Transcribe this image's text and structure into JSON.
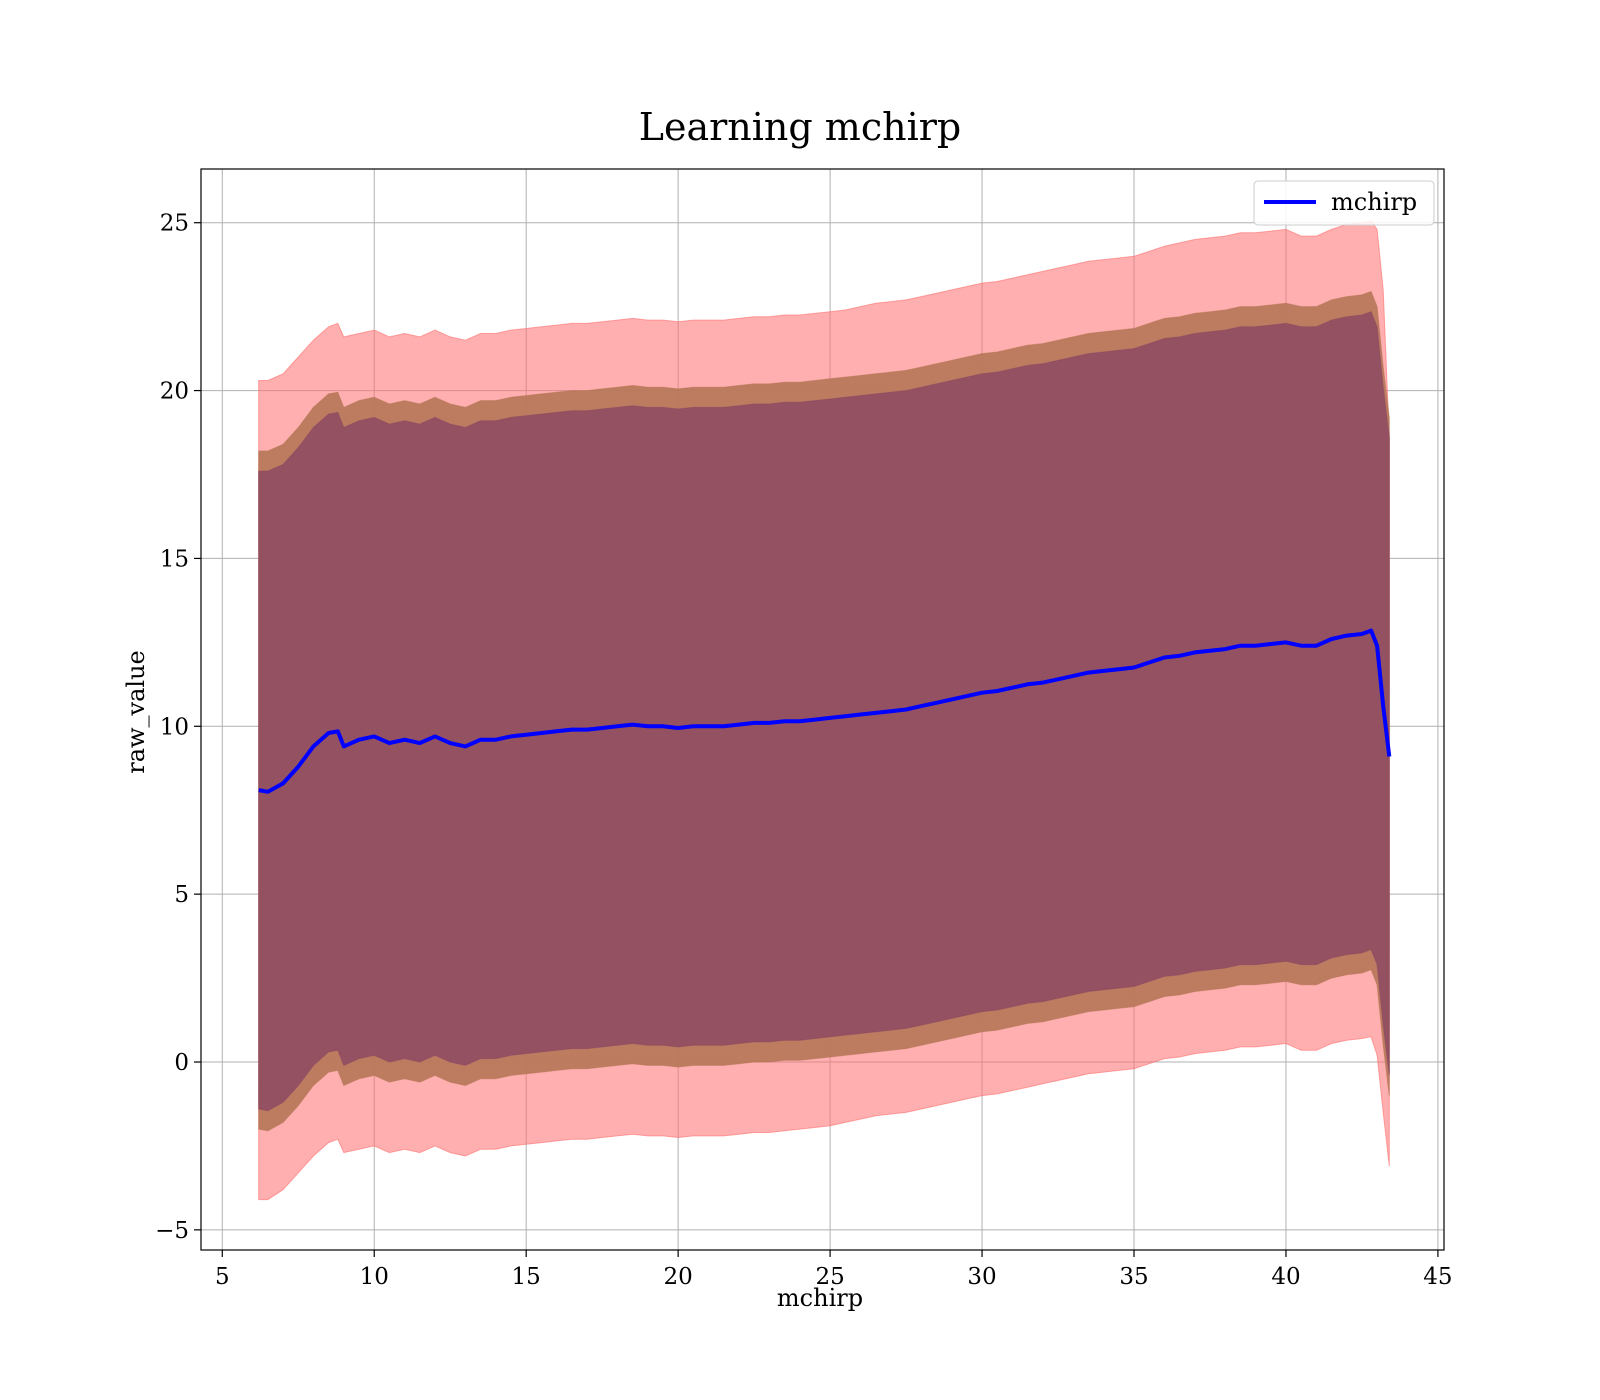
{
  "chart_data": {
    "type": "area",
    "title": "Learning mchirp",
    "xlabel": "mchirp",
    "ylabel": "raw_value",
    "xlim": [
      4.3,
      45.2
    ],
    "ylim": [
      -5.6,
      26.6
    ],
    "xticks": [
      5,
      10,
      15,
      20,
      25,
      30,
      35,
      40,
      45
    ],
    "yticks": [
      -5,
      0,
      5,
      10,
      15,
      20,
      25
    ],
    "ytick_labels": [
      "−5",
      "0",
      "5",
      "10",
      "15",
      "20",
      "25"
    ],
    "grid": true,
    "legend": {
      "placement": "top-right",
      "entries": [
        "mchirp"
      ]
    },
    "colors": {
      "line": "#0000ff",
      "band_outer": "#ff6e6e",
      "band_middle": "#b67758",
      "band_inner": "#8c4a62"
    },
    "series": [
      {
        "name": "mchirp",
        "x": [
          6.2,
          6.5,
          7.0,
          7.5,
          8.0,
          8.5,
          8.8,
          9.0,
          9.5,
          10.0,
          10.5,
          11.0,
          11.5,
          12.0,
          12.5,
          13.0,
          13.5,
          14.0,
          14.5,
          15.0,
          15.5,
          16.0,
          16.5,
          17.0,
          17.5,
          18.0,
          18.5,
          19.0,
          19.5,
          20.0,
          20.5,
          21.0,
          21.5,
          22.0,
          22.5,
          23.0,
          23.5,
          24.0,
          24.5,
          25.0,
          25.5,
          26.0,
          26.5,
          27.0,
          27.5,
          28.0,
          28.5,
          29.0,
          29.5,
          30.0,
          30.5,
          31.0,
          31.5,
          32.0,
          32.5,
          33.0,
          33.5,
          34.0,
          34.5,
          35.0,
          35.5,
          36.0,
          36.5,
          37.0,
          37.5,
          38.0,
          38.5,
          39.0,
          39.5,
          40.0,
          40.5,
          41.0,
          41.5,
          42.0,
          42.5,
          42.8,
          43.0,
          43.2,
          43.4
        ],
        "y": [
          8.1,
          8.05,
          8.3,
          8.8,
          9.4,
          9.8,
          9.85,
          9.4,
          9.6,
          9.7,
          9.5,
          9.6,
          9.5,
          9.7,
          9.5,
          9.4,
          9.6,
          9.6,
          9.7,
          9.75,
          9.8,
          9.85,
          9.9,
          9.9,
          9.95,
          10.0,
          10.05,
          10.0,
          10.0,
          9.95,
          10.0,
          10.0,
          10.0,
          10.05,
          10.1,
          10.1,
          10.15,
          10.15,
          10.2,
          10.25,
          10.3,
          10.35,
          10.4,
          10.45,
          10.5,
          10.6,
          10.7,
          10.8,
          10.9,
          11.0,
          11.05,
          11.15,
          11.25,
          11.3,
          11.4,
          11.5,
          11.6,
          11.65,
          11.7,
          11.75,
          11.9,
          12.05,
          12.1,
          12.2,
          12.25,
          12.3,
          12.4,
          12.4,
          12.45,
          12.5,
          12.4,
          12.4,
          12.6,
          12.7,
          12.75,
          12.85,
          12.4,
          10.6,
          9.1
        ]
      },
      {
        "name": "",
        "band": "outer",
        "x": [
          6.2,
          6.5,
          7.0,
          7.5,
          8.0,
          8.5,
          8.8,
          9.0,
          9.5,
          10.0,
          10.5,
          11.0,
          11.5,
          12.0,
          12.5,
          13.0,
          13.5,
          14.0,
          14.5,
          15.0,
          15.5,
          16.0,
          16.5,
          17.0,
          17.5,
          18.0,
          18.5,
          19.0,
          19.5,
          20.0,
          20.5,
          21.0,
          21.5,
          22.0,
          22.5,
          23.0,
          23.5,
          24.0,
          24.5,
          25.0,
          25.5,
          26.0,
          26.5,
          27.0,
          27.5,
          28.0,
          28.5,
          29.0,
          29.5,
          30.0,
          30.5,
          31.0,
          31.5,
          32.0,
          32.5,
          33.0,
          33.5,
          34.0,
          34.5,
          35.0,
          35.5,
          36.0,
          36.5,
          37.0,
          37.5,
          38.0,
          38.5,
          39.0,
          39.5,
          40.0,
          40.5,
          41.0,
          41.5,
          42.0,
          42.5,
          42.8,
          43.0,
          43.2,
          43.4
        ],
        "upper": [
          20.3,
          20.3,
          20.5,
          21.0,
          21.5,
          21.9,
          22.0,
          21.6,
          21.7,
          21.8,
          21.6,
          21.7,
          21.6,
          21.8,
          21.6,
          21.5,
          21.7,
          21.7,
          21.8,
          21.85,
          21.9,
          21.95,
          22.0,
          22.0,
          22.05,
          22.1,
          22.15,
          22.1,
          22.1,
          22.05,
          22.1,
          22.1,
          22.1,
          22.15,
          22.2,
          22.2,
          22.25,
          22.25,
          22.3,
          22.35,
          22.4,
          22.5,
          22.6,
          22.65,
          22.7,
          22.8,
          22.9,
          23.0,
          23.1,
          23.2,
          23.25,
          23.35,
          23.45,
          23.55,
          23.65,
          23.75,
          23.85,
          23.9,
          23.95,
          24.0,
          24.15,
          24.3,
          24.4,
          24.5,
          24.55,
          24.6,
          24.7,
          24.7,
          24.75,
          24.8,
          24.6,
          24.6,
          24.8,
          24.95,
          25.0,
          25.05,
          24.8,
          23.0,
          18.6
        ],
        "lower": [
          -4.1,
          -4.1,
          -3.8,
          -3.3,
          -2.8,
          -2.4,
          -2.3,
          -2.7,
          -2.6,
          -2.5,
          -2.7,
          -2.6,
          -2.7,
          -2.5,
          -2.7,
          -2.8,
          -2.6,
          -2.6,
          -2.5,
          -2.45,
          -2.4,
          -2.35,
          -2.3,
          -2.3,
          -2.25,
          -2.2,
          -2.15,
          -2.2,
          -2.2,
          -2.25,
          -2.2,
          -2.2,
          -2.2,
          -2.15,
          -2.1,
          -2.1,
          -2.05,
          -2.0,
          -1.95,
          -1.9,
          -1.8,
          -1.7,
          -1.6,
          -1.55,
          -1.5,
          -1.4,
          -1.3,
          -1.2,
          -1.1,
          -1.0,
          -0.95,
          -0.85,
          -0.75,
          -0.65,
          -0.55,
          -0.45,
          -0.35,
          -0.3,
          -0.25,
          -0.2,
          -0.05,
          0.1,
          0.15,
          0.25,
          0.3,
          0.35,
          0.45,
          0.45,
          0.5,
          0.55,
          0.35,
          0.35,
          0.55,
          0.65,
          0.7,
          0.75,
          0.2,
          -1.5,
          -3.1
        ]
      },
      {
        "name": "",
        "band": "middle",
        "x": [
          6.2,
          6.5,
          7.0,
          7.5,
          8.0,
          8.5,
          8.8,
          9.0,
          9.5,
          10.0,
          10.5,
          11.0,
          11.5,
          12.0,
          12.5,
          13.0,
          13.5,
          14.0,
          14.5,
          15.0,
          15.5,
          16.0,
          16.5,
          17.0,
          17.5,
          18.0,
          18.5,
          19.0,
          19.5,
          20.0,
          20.5,
          21.0,
          21.5,
          22.0,
          22.5,
          23.0,
          23.5,
          24.0,
          24.5,
          25.0,
          25.5,
          26.0,
          26.5,
          27.0,
          27.5,
          28.0,
          28.5,
          29.0,
          29.5,
          30.0,
          30.5,
          31.0,
          31.5,
          32.0,
          32.5,
          33.0,
          33.5,
          34.0,
          34.5,
          35.0,
          35.5,
          36.0,
          36.5,
          37.0,
          37.5,
          38.0,
          38.5,
          39.0,
          39.5,
          40.0,
          40.5,
          41.0,
          41.5,
          42.0,
          42.5,
          42.8,
          43.0,
          43.2,
          43.4
        ],
        "upper": [
          18.2,
          18.2,
          18.4,
          18.9,
          19.5,
          19.9,
          19.95,
          19.5,
          19.7,
          19.8,
          19.6,
          19.7,
          19.6,
          19.8,
          19.6,
          19.5,
          19.7,
          19.7,
          19.8,
          19.85,
          19.9,
          19.95,
          20.0,
          20.0,
          20.05,
          20.1,
          20.15,
          20.1,
          20.1,
          20.05,
          20.1,
          20.1,
          20.1,
          20.15,
          20.2,
          20.2,
          20.25,
          20.25,
          20.3,
          20.35,
          20.4,
          20.45,
          20.5,
          20.55,
          20.6,
          20.7,
          20.8,
          20.9,
          21.0,
          21.1,
          21.15,
          21.25,
          21.35,
          21.4,
          21.5,
          21.6,
          21.7,
          21.75,
          21.8,
          21.85,
          22.0,
          22.15,
          22.2,
          22.3,
          22.35,
          22.4,
          22.5,
          22.5,
          22.55,
          22.6,
          22.5,
          22.5,
          22.7,
          22.8,
          22.85,
          22.95,
          22.5,
          20.7,
          19.2
        ],
        "lower": [
          -2.0,
          -2.05,
          -1.8,
          -1.3,
          -0.7,
          -0.3,
          -0.25,
          -0.7,
          -0.5,
          -0.4,
          -0.6,
          -0.5,
          -0.6,
          -0.4,
          -0.6,
          -0.7,
          -0.5,
          -0.5,
          -0.4,
          -0.35,
          -0.3,
          -0.25,
          -0.2,
          -0.2,
          -0.15,
          -0.1,
          -0.05,
          -0.1,
          -0.1,
          -0.15,
          -0.1,
          -0.1,
          -0.1,
          -0.05,
          0.0,
          0.0,
          0.05,
          0.05,
          0.1,
          0.15,
          0.2,
          0.25,
          0.3,
          0.35,
          0.4,
          0.5,
          0.6,
          0.7,
          0.8,
          0.9,
          0.95,
          1.05,
          1.15,
          1.2,
          1.3,
          1.4,
          1.5,
          1.55,
          1.6,
          1.65,
          1.8,
          1.95,
          2.0,
          2.1,
          2.15,
          2.2,
          2.3,
          2.3,
          2.35,
          2.4,
          2.3,
          2.3,
          2.5,
          2.6,
          2.65,
          2.75,
          2.3,
          0.5,
          -1.0
        ]
      },
      {
        "name": "",
        "band": "inner",
        "x": [
          6.2,
          6.5,
          7.0,
          7.5,
          8.0,
          8.5,
          8.8,
          9.0,
          9.5,
          10.0,
          10.5,
          11.0,
          11.5,
          12.0,
          12.5,
          13.0,
          13.5,
          14.0,
          14.5,
          15.0,
          15.5,
          16.0,
          16.5,
          17.0,
          17.5,
          18.0,
          18.5,
          19.0,
          19.5,
          20.0,
          20.5,
          21.0,
          21.5,
          22.0,
          22.5,
          23.0,
          23.5,
          24.0,
          24.5,
          25.0,
          25.5,
          26.0,
          26.5,
          27.0,
          27.5,
          28.0,
          28.5,
          29.0,
          29.5,
          30.0,
          30.5,
          31.0,
          31.5,
          32.0,
          32.5,
          33.0,
          33.5,
          34.0,
          34.5,
          35.0,
          35.5,
          36.0,
          36.5,
          37.0,
          37.5,
          38.0,
          38.5,
          39.0,
          39.5,
          40.0,
          40.5,
          41.0,
          41.5,
          42.0,
          42.5,
          42.8,
          43.0,
          43.2,
          43.4
        ],
        "upper": [
          17.6,
          17.6,
          17.8,
          18.3,
          18.9,
          19.3,
          19.35,
          18.9,
          19.1,
          19.2,
          19.0,
          19.1,
          19.0,
          19.2,
          19.0,
          18.9,
          19.1,
          19.1,
          19.2,
          19.25,
          19.3,
          19.35,
          19.4,
          19.4,
          19.45,
          19.5,
          19.55,
          19.5,
          19.5,
          19.45,
          19.5,
          19.5,
          19.5,
          19.55,
          19.6,
          19.6,
          19.65,
          19.65,
          19.7,
          19.75,
          19.8,
          19.85,
          19.9,
          19.95,
          20.0,
          20.1,
          20.2,
          20.3,
          20.4,
          20.5,
          20.55,
          20.65,
          20.75,
          20.8,
          20.9,
          21.0,
          21.1,
          21.15,
          21.2,
          21.25,
          21.4,
          21.55,
          21.6,
          21.7,
          21.75,
          21.8,
          21.9,
          21.9,
          21.95,
          22.0,
          21.9,
          21.9,
          22.1,
          22.2,
          22.25,
          22.35,
          21.9,
          20.1,
          18.6
        ],
        "lower": [
          -1.4,
          -1.45,
          -1.2,
          -0.7,
          -0.1,
          0.3,
          0.35,
          -0.1,
          0.1,
          0.2,
          0.0,
          0.1,
          0.0,
          0.2,
          0.0,
          -0.1,
          0.1,
          0.1,
          0.2,
          0.25,
          0.3,
          0.35,
          0.4,
          0.4,
          0.45,
          0.5,
          0.55,
          0.5,
          0.5,
          0.45,
          0.5,
          0.5,
          0.5,
          0.55,
          0.6,
          0.6,
          0.65,
          0.65,
          0.7,
          0.75,
          0.8,
          0.85,
          0.9,
          0.95,
          1.0,
          1.1,
          1.2,
          1.3,
          1.4,
          1.5,
          1.55,
          1.65,
          1.75,
          1.8,
          1.9,
          2.0,
          2.1,
          2.15,
          2.2,
          2.25,
          2.4,
          2.55,
          2.6,
          2.7,
          2.75,
          2.8,
          2.9,
          2.9,
          2.95,
          3.0,
          2.9,
          2.9,
          3.1,
          3.2,
          3.25,
          3.35,
          2.9,
          1.1,
          -0.4
        ]
      }
    ]
  }
}
